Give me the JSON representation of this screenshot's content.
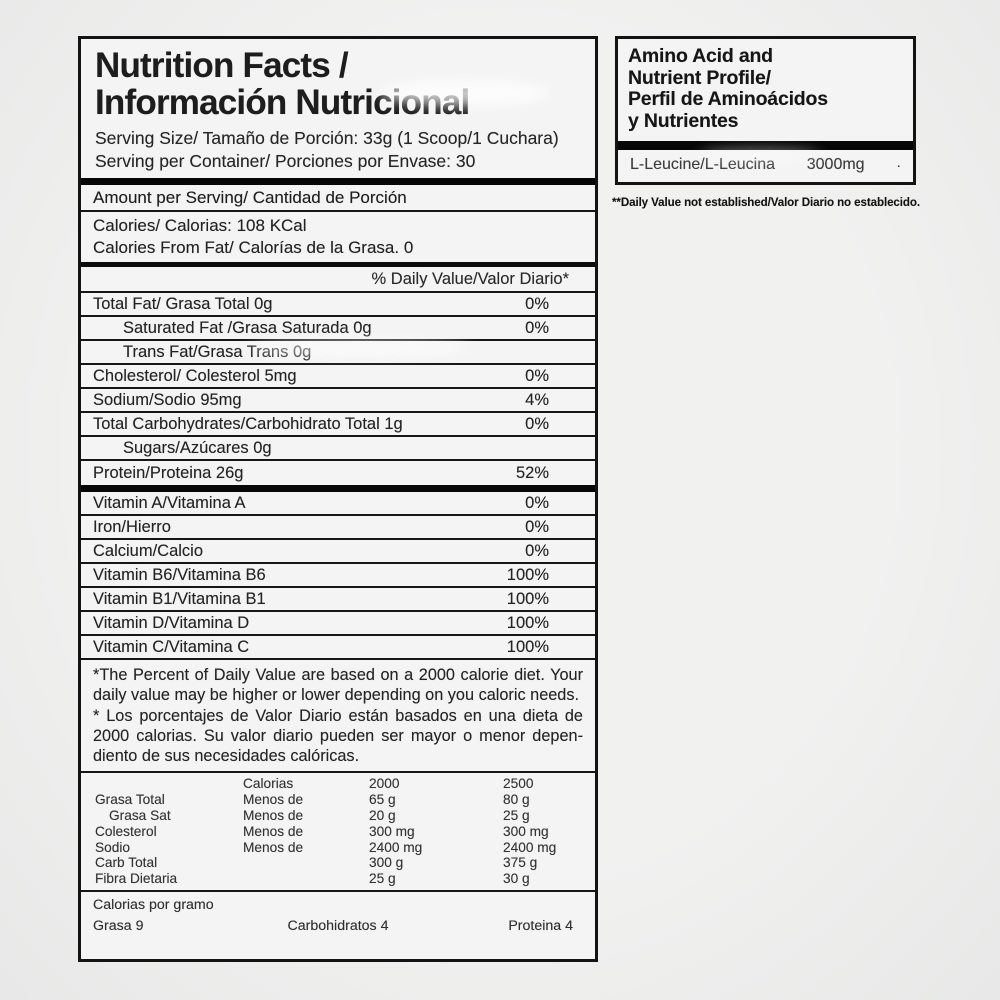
{
  "nutrition_label": {
    "title_en": "Nutrition Facts /",
    "title_es": "Información Nutricional",
    "serving_size": "Serving Size/ Tamaño de Porción: 33g (1 Scoop/1 Cuchara)",
    "servings_per_container": "Serving per Container/ Porciones por Envase: 30",
    "amount_per_serving": "Amount per Serving/ Cantidad de Porción",
    "calories_line": "Calories/ Calorias: 108 KCal",
    "calories_from_fat_line": "Calories From Fat/ Calorías de la Grasa. 0",
    "daily_value_header": "% Daily Value/Valor Diario*",
    "nutrient_rows": [
      {
        "label": "Total Fat/ Grasa Total 0g",
        "value": "0%"
      },
      {
        "label": "Saturated Fat /Grasa Saturada 0g",
        "value": "0%"
      },
      {
        "label": "Trans Fat/Grasa Trans 0g",
        "value": ""
      },
      {
        "label": "Cholesterol/ Colesterol 5mg",
        "value": "0%"
      },
      {
        "label": "Sodium/Sodio 95mg",
        "value": "4%"
      },
      {
        "label": "Total Carbohydrates/Carbohidrato Total 1g",
        "value": "0%"
      },
      {
        "label": "Sugars/Azúcares 0g",
        "value": ""
      },
      {
        "label": "Protein/Proteina 26g",
        "value": "52%"
      }
    ],
    "vitamin_rows": [
      {
        "label": "Vitamin A/Vitamina A",
        "value": "0%"
      },
      {
        "label": "Iron/Hierro",
        "value": "0%"
      },
      {
        "label": "Calcium/Calcio",
        "value": "0%"
      },
      {
        "label": "Vitamin B6/Vitamina B6",
        "value": "100%"
      },
      {
        "label": "Vitamin B1/Vitamina B1",
        "value": "100%"
      },
      {
        "label": "Vitamin D/Vitamina D",
        "value": "100%"
      },
      {
        "label": "Vitamin C/Vitamina C",
        "value": "100%"
      }
    ],
    "footnote_en": "*The Percent of Daily Value are based on a 2000 calorie diet. Your daily value may be higher or lower depending on you caloric needs.",
    "footnote_es": "* Los porcentajes de Valor Diario están basados en una dieta de 2000 calorias. Su valor diario pueden ser mayor o menor depen-diento de sus necesidades calóricas.",
    "reference_table": {
      "header": [
        "",
        "Calorias",
        "2000",
        "2500"
      ],
      "rows": [
        [
          "Grasa Total",
          "Menos de",
          "65 g",
          "80 g"
        ],
        [
          "Grasa Sat",
          "Menos de",
          "20 g",
          "25 g"
        ],
        [
          "Colesterol",
          "Menos de",
          "300 mg",
          "300 mg"
        ],
        [
          "Sodio",
          "Menos de",
          "2400 mg",
          "2400 mg"
        ],
        [
          "Carb Total",
          "",
          "300 g",
          "375 g"
        ],
        [
          "Fibra Dietaria",
          "",
          "25 g",
          "30 g"
        ]
      ]
    },
    "calories_per_gram": {
      "title": "Calorias por gramo",
      "fat": "Grasa 9",
      "carbs": "Carbohidratos 4",
      "protein": "Proteina 4"
    }
  },
  "amino_panel": {
    "title_lines": [
      "Amino Acid and",
      "Nutrient Profile/",
      "Perfil de Aminoácidos",
      "y Nutrientes"
    ],
    "rows": [
      {
        "label": "L-Leucine/L-Leucina",
        "value": "3000mg",
        "mark": "·"
      }
    ],
    "footnote": "**Daily Value not established/Valor Diario no establecido."
  },
  "colors": {
    "panel_background": "#f3f4f3",
    "border": "#131313",
    "page_background": "#ececeb"
  }
}
